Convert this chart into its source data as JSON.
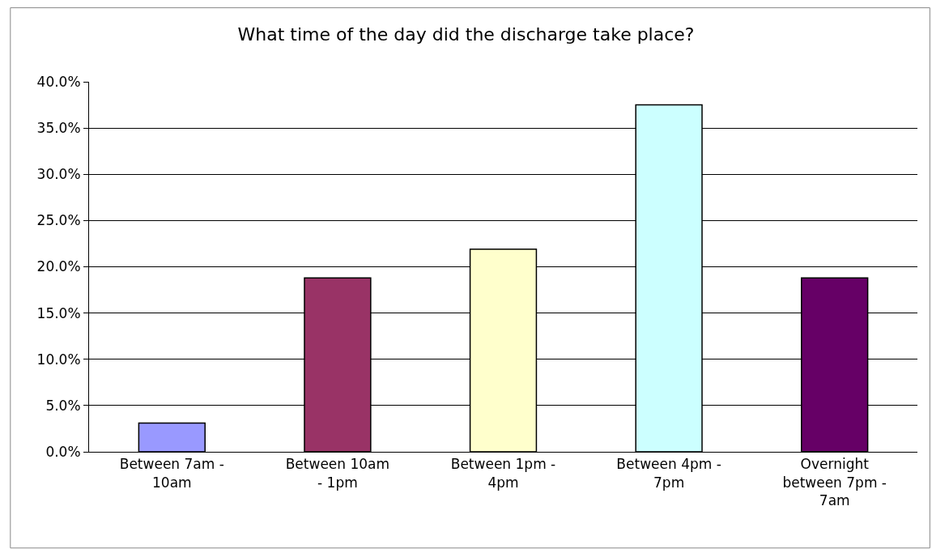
{
  "chart_data": {
    "type": "bar",
    "title": "What time of the day did the discharge take place?",
    "categories": [
      "Between 7am - 10am",
      "Between 10am - 1pm",
      "Between 1pm - 4pm",
      "Between 4pm - 7pm",
      "Overnight between 7pm - 7am"
    ],
    "values": [
      3.1,
      18.8,
      21.9,
      37.5,
      18.8
    ],
    "colors": [
      "#9999ff",
      "#993366",
      "#ffffcc",
      "#ccffff",
      "#660066"
    ],
    "ylim": [
      0,
      40
    ],
    "yticks": [
      {
        "value": 0,
        "label": "0.0%"
      },
      {
        "value": 5,
        "label": "5.0%"
      },
      {
        "value": 10,
        "label": "10.0%"
      },
      {
        "value": 15,
        "label": "15.0%"
      },
      {
        "value": 20,
        "label": "20.0%"
      },
      {
        "value": 25,
        "label": "25.0%"
      },
      {
        "value": 30,
        "label": "30.0%"
      },
      {
        "value": 35,
        "label": "35.0%"
      },
      {
        "value": 40,
        "label": "40.0%"
      }
    ],
    "grid": "y"
  }
}
